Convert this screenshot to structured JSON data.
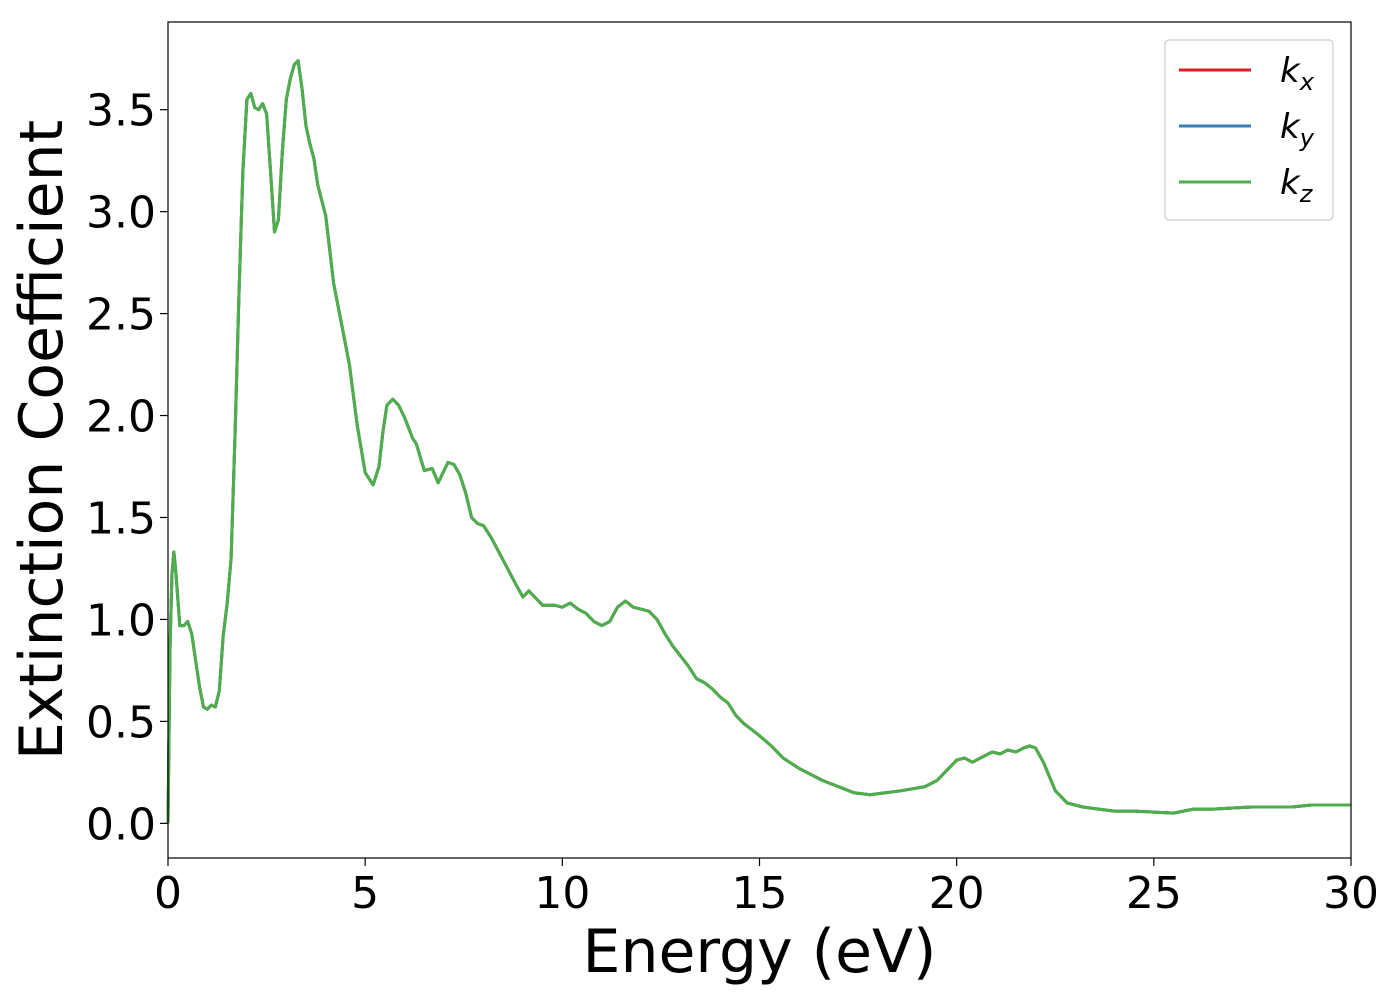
{
  "chart_data": {
    "type": "line",
    "title": "",
    "xlabel": "Energy (eV)",
    "ylabel": "Extinction Coefficient",
    "xlim": [
      0,
      30
    ],
    "ylim": [
      -0.17,
      3.93
    ],
    "x_ticks": [
      0,
      5,
      10,
      15,
      20,
      25,
      30
    ],
    "x_tick_labels": [
      "0",
      "5",
      "10",
      "15",
      "20",
      "25",
      "30"
    ],
    "y_ticks": [
      0.0,
      0.5,
      1.0,
      1.5,
      2.0,
      2.5,
      3.0,
      3.5
    ],
    "y_tick_labels": [
      "0.0",
      "0.5",
      "1.0",
      "1.5",
      "2.0",
      "2.5",
      "3.0",
      "3.5"
    ],
    "grid": false,
    "legend_position": "top-right",
    "legend": [
      {
        "base": "k",
        "sub": "x",
        "color": "#e41a1c"
      },
      {
        "base": "k",
        "sub": "y",
        "color": "#377eb8"
      },
      {
        "base": "k",
        "sub": "z",
        "color": "#4daf4a"
      }
    ],
    "x": [
      0,
      0.05,
      0.1,
      0.15,
      0.2,
      0.3,
      0.4,
      0.5,
      0.6,
      0.7,
      0.8,
      0.9,
      1.0,
      1.1,
      1.2,
      1.3,
      1.4,
      1.5,
      1.6,
      1.7,
      1.8,
      1.9,
      2.0,
      2.1,
      2.2,
      2.3,
      2.4,
      2.5,
      2.6,
      2.7,
      2.8,
      2.9,
      3.0,
      3.1,
      3.2,
      3.3,
      3.4,
      3.5,
      3.6,
      3.7,
      3.8,
      4.0,
      4.2,
      4.4,
      4.6,
      4.8,
      5.0,
      5.2,
      5.35,
      5.45,
      5.55,
      5.7,
      5.85,
      6.0,
      6.2,
      6.3,
      6.5,
      6.7,
      6.85,
      7.0,
      7.1,
      7.25,
      7.4,
      7.55,
      7.7,
      7.85,
      8.0,
      8.2,
      8.5,
      8.8,
      9.0,
      9.15,
      9.3,
      9.5,
      9.8,
      10.0,
      10.2,
      10.4,
      10.6,
      10.8,
      11.0,
      11.2,
      11.4,
      11.6,
      11.8,
      12.0,
      12.2,
      12.4,
      12.6,
      12.8,
      13.0,
      13.2,
      13.4,
      13.6,
      13.8,
      14.0,
      14.2,
      14.4,
      14.6,
      14.8,
      15.0,
      15.3,
      15.6,
      16.0,
      16.3,
      16.6,
      17.0,
      17.4,
      17.8,
      18.2,
      18.6,
      18.9,
      19.2,
      19.5,
      19.8,
      20.0,
      20.2,
      20.4,
      20.6,
      20.9,
      21.1,
      21.3,
      21.5,
      21.7,
      21.85,
      22.0,
      22.2,
      22.5,
      22.8,
      23.2,
      23.6,
      24.0,
      24.5,
      25.0,
      25.5,
      26.0,
      26.5,
      27.0,
      27.5,
      28.0,
      28.5,
      29.0,
      29.5,
      30.0
    ],
    "series": [
      {
        "name": "k_x",
        "color": "#e41a1c",
        "values": [
          0.0,
          0.85,
          1.22,
          1.33,
          1.23,
          0.97,
          0.97,
          0.99,
          0.93,
          0.8,
          0.67,
          0.57,
          0.56,
          0.58,
          0.57,
          0.65,
          0.92,
          1.08,
          1.3,
          1.9,
          2.6,
          3.2,
          3.55,
          3.58,
          3.51,
          3.5,
          3.53,
          3.48,
          3.2,
          2.9,
          2.96,
          3.3,
          3.55,
          3.65,
          3.72,
          3.74,
          3.6,
          3.42,
          3.33,
          3.26,
          3.13,
          2.98,
          2.65,
          2.45,
          2.25,
          1.95,
          1.72,
          1.66,
          1.75,
          1.92,
          2.05,
          2.08,
          2.05,
          1.99,
          1.89,
          1.86,
          1.73,
          1.74,
          1.67,
          1.73,
          1.77,
          1.76,
          1.71,
          1.62,
          1.5,
          1.47,
          1.46,
          1.4,
          1.29,
          1.18,
          1.11,
          1.14,
          1.11,
          1.07,
          1.07,
          1.06,
          1.08,
          1.05,
          1.03,
          0.99,
          0.97,
          0.99,
          1.06,
          1.09,
          1.06,
          1.05,
          1.04,
          1.0,
          0.93,
          0.87,
          0.82,
          0.77,
          0.71,
          0.69,
          0.66,
          0.62,
          0.59,
          0.53,
          0.49,
          0.46,
          0.43,
          0.38,
          0.32,
          0.27,
          0.24,
          0.21,
          0.18,
          0.15,
          0.14,
          0.15,
          0.16,
          0.17,
          0.18,
          0.21,
          0.27,
          0.31,
          0.32,
          0.3,
          0.32,
          0.35,
          0.34,
          0.36,
          0.35,
          0.37,
          0.38,
          0.37,
          0.3,
          0.16,
          0.1,
          0.08,
          0.07,
          0.06,
          0.06,
          0.055,
          0.05,
          0.07,
          0.07,
          0.075,
          0.08,
          0.08,
          0.08,
          0.09,
          0.09,
          0.09
        ]
      },
      {
        "name": "k_y",
        "color": "#377eb8",
        "values": [
          0.0,
          0.85,
          1.22,
          1.33,
          1.23,
          0.97,
          0.97,
          0.99,
          0.93,
          0.8,
          0.67,
          0.57,
          0.56,
          0.58,
          0.57,
          0.65,
          0.92,
          1.08,
          1.3,
          1.9,
          2.6,
          3.2,
          3.55,
          3.58,
          3.51,
          3.5,
          3.53,
          3.48,
          3.2,
          2.9,
          2.96,
          3.3,
          3.55,
          3.65,
          3.72,
          3.74,
          3.6,
          3.42,
          3.33,
          3.26,
          3.13,
          2.98,
          2.65,
          2.45,
          2.25,
          1.95,
          1.72,
          1.66,
          1.75,
          1.92,
          2.05,
          2.08,
          2.05,
          1.99,
          1.89,
          1.86,
          1.73,
          1.74,
          1.67,
          1.73,
          1.77,
          1.76,
          1.71,
          1.62,
          1.5,
          1.47,
          1.46,
          1.4,
          1.29,
          1.18,
          1.11,
          1.14,
          1.11,
          1.07,
          1.07,
          1.06,
          1.08,
          1.05,
          1.03,
          0.99,
          0.97,
          0.99,
          1.06,
          1.09,
          1.06,
          1.05,
          1.04,
          1.0,
          0.93,
          0.87,
          0.82,
          0.77,
          0.71,
          0.69,
          0.66,
          0.62,
          0.59,
          0.53,
          0.49,
          0.46,
          0.43,
          0.38,
          0.32,
          0.27,
          0.24,
          0.21,
          0.18,
          0.15,
          0.14,
          0.15,
          0.16,
          0.17,
          0.18,
          0.21,
          0.27,
          0.31,
          0.32,
          0.3,
          0.32,
          0.35,
          0.34,
          0.36,
          0.35,
          0.37,
          0.38,
          0.37,
          0.3,
          0.16,
          0.1,
          0.08,
          0.07,
          0.06,
          0.06,
          0.055,
          0.05,
          0.07,
          0.07,
          0.075,
          0.08,
          0.08,
          0.08,
          0.09,
          0.09,
          0.09
        ]
      },
      {
        "name": "k_z",
        "color": "#4daf4a",
        "values": [
          0.0,
          0.85,
          1.22,
          1.33,
          1.23,
          0.97,
          0.97,
          0.99,
          0.93,
          0.8,
          0.67,
          0.57,
          0.56,
          0.58,
          0.57,
          0.65,
          0.92,
          1.08,
          1.3,
          1.9,
          2.6,
          3.2,
          3.55,
          3.58,
          3.51,
          3.5,
          3.53,
          3.48,
          3.2,
          2.9,
          2.96,
          3.3,
          3.55,
          3.65,
          3.72,
          3.74,
          3.6,
          3.42,
          3.33,
          3.26,
          3.13,
          2.98,
          2.65,
          2.45,
          2.25,
          1.95,
          1.72,
          1.66,
          1.75,
          1.92,
          2.05,
          2.08,
          2.05,
          1.99,
          1.89,
          1.86,
          1.73,
          1.74,
          1.67,
          1.73,
          1.77,
          1.76,
          1.71,
          1.62,
          1.5,
          1.47,
          1.46,
          1.4,
          1.29,
          1.18,
          1.11,
          1.14,
          1.11,
          1.07,
          1.07,
          1.06,
          1.08,
          1.05,
          1.03,
          0.99,
          0.97,
          0.99,
          1.06,
          1.09,
          1.06,
          1.05,
          1.04,
          1.0,
          0.93,
          0.87,
          0.82,
          0.77,
          0.71,
          0.69,
          0.66,
          0.62,
          0.59,
          0.53,
          0.49,
          0.46,
          0.43,
          0.38,
          0.32,
          0.27,
          0.24,
          0.21,
          0.18,
          0.15,
          0.14,
          0.15,
          0.16,
          0.17,
          0.18,
          0.21,
          0.27,
          0.31,
          0.32,
          0.3,
          0.32,
          0.35,
          0.34,
          0.36,
          0.35,
          0.37,
          0.38,
          0.37,
          0.3,
          0.16,
          0.1,
          0.08,
          0.07,
          0.06,
          0.06,
          0.055,
          0.05,
          0.07,
          0.07,
          0.075,
          0.08,
          0.08,
          0.08,
          0.09,
          0.09,
          0.09
        ]
      }
    ]
  }
}
